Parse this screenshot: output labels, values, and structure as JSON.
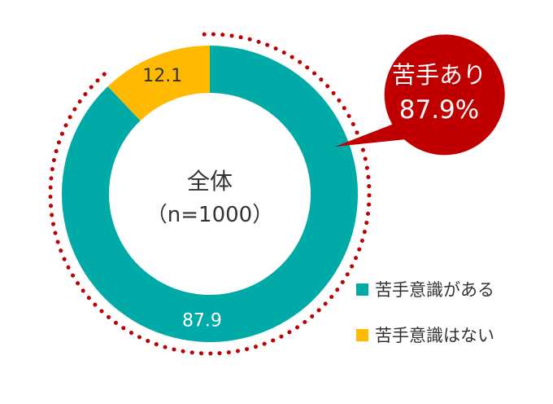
{
  "chart_data": {
    "type": "donut",
    "center_label": {
      "line1": "全体",
      "line2": "（n=1000）"
    },
    "series": [
      {
        "name": "苦手意識がある",
        "value": 87.9,
        "label": "87.9",
        "color": "#00AAA6",
        "label_color": "#ffffff"
      },
      {
        "name": "苦手意識はない",
        "value": 12.1,
        "label": "12.1",
        "color": "#FFB900",
        "label_color": "#333333"
      }
    ],
    "callout": {
      "line1": "苦手あり",
      "line2": "87.9%",
      "color": "#C00000",
      "text_color": "#ffffff"
    },
    "highlight_outline": {
      "style": "dotted",
      "color": "#C00000"
    },
    "legend_position": "right"
  }
}
